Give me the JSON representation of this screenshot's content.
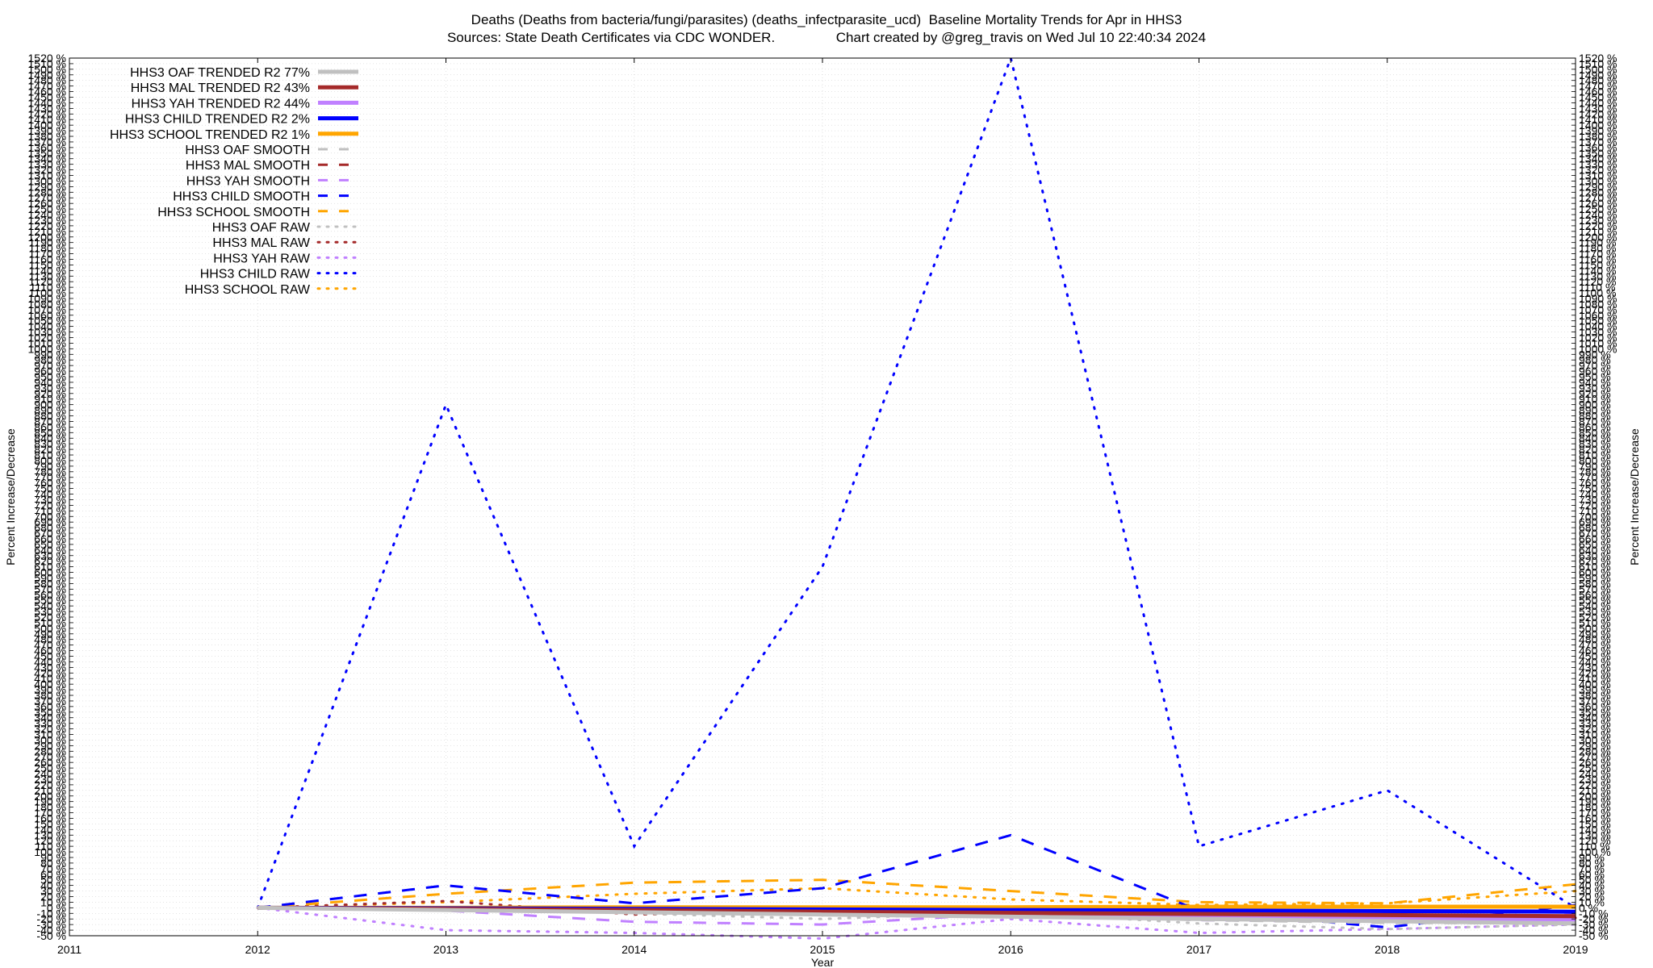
{
  "title_line1": "Deaths (Deaths from bacteria/fungi/parasites) (deaths_infectparasite_ucd)  Baseline Mortality Trends for Apr in HHS3",
  "title_line2": "Sources: State Death Certificates via CDC WONDER.                Chart created by @greg_travis on Wed Jul 10 22:40:34 2024",
  "chart_data": {
    "type": "line",
    "title": "Deaths (Deaths from bacteria/fungi/parasites) (deaths_infectparasite_ucd)  Baseline Mortality Trends for Apr in HHS3",
    "subtitle": "Sources: State Death Certificates via CDC WONDER.                Chart created by @greg_travis on Wed Jul 10 22:40:34 2024",
    "xlabel": "Year",
    "ylabel": "Percent Increase/Decrease",
    "y2label": "Percent Increase/Decrease",
    "xlim": [
      2011,
      2019
    ],
    "ylim": [
      -50,
      1520
    ],
    "x_ticks": [
      2011,
      2012,
      2013,
      2014,
      2015,
      2016,
      2017,
      2018,
      2019
    ],
    "y_tick_step": 10,
    "y_tick_suffix": " %",
    "grid": true,
    "legend_position": "top-left",
    "x": [
      2012,
      2013,
      2014,
      2015,
      2016,
      2017,
      2018,
      2019
    ],
    "series": [
      {
        "name": "HHS3 OAF TRENDED R2  77%",
        "style": "solid-thick",
        "color": "#c0c0c0",
        "values": [
          0,
          -4,
          -8,
          -12,
          -16,
          -20,
          -24,
          -28
        ]
      },
      {
        "name": "HHS3 MAL TRENDED R2  43%",
        "style": "solid-thick",
        "color": "#a52a2a",
        "values": [
          0,
          -2,
          -4,
          -7,
          -9,
          -11,
          -13,
          -15
        ]
      },
      {
        "name": "HHS3 YAH TRENDED R2  44%",
        "style": "solid-thick",
        "color": "#c080ff",
        "values": [
          0,
          -3,
          -6,
          -9,
          -12,
          -15,
          -18,
          -21
        ]
      },
      {
        "name": "HHS3 CHILD TRENDED R2   2%",
        "style": "solid-thick",
        "color": "#0000ff",
        "values": [
          0,
          -1,
          -2,
          -3,
          -4,
          -5,
          -6,
          -7
        ]
      },
      {
        "name": "HHS3 SCHOOL TRENDED R2   1%",
        "style": "solid-thick",
        "color": "#ffa500",
        "values": [
          0,
          0,
          1,
          1,
          1,
          2,
          2,
          2
        ]
      },
      {
        "name": "HHS3 OAF SMOOTH",
        "style": "dashed",
        "color": "#c0c0c0",
        "values": [
          0,
          -3,
          -7,
          -12,
          -15,
          -22,
          -27,
          -28
        ]
      },
      {
        "name": "HHS3 MAL SMOOTH",
        "style": "dashed",
        "color": "#a52a2a",
        "values": [
          0,
          -2,
          -5,
          -5,
          -5,
          -8,
          -12,
          -16
        ]
      },
      {
        "name": "HHS3 YAH SMOOTH",
        "style": "dashed",
        "color": "#c080ff",
        "values": [
          0,
          -5,
          -25,
          -30,
          -10,
          -22,
          -26,
          -12
        ]
      },
      {
        "name": "HHS3 CHILD SMOOTH",
        "style": "dashed",
        "color": "#0000ff",
        "values": [
          0,
          40,
          8,
          35,
          130,
          -5,
          -35,
          5
        ]
      },
      {
        "name": "HHS3 SCHOOL SMOOTH",
        "style": "dashed",
        "color": "#ffa500",
        "values": [
          0,
          25,
          45,
          50,
          30,
          10,
          8,
          42
        ]
      },
      {
        "name": "HHS3 OAF RAW",
        "style": "dotted",
        "color": "#c0c0c0",
        "values": [
          0,
          0,
          -10,
          -20,
          -8,
          -28,
          -38,
          -30
        ]
      },
      {
        "name": "HHS3 MAL RAW",
        "style": "dotted",
        "color": "#a52a2a",
        "values": [
          0,
          12,
          -12,
          -8,
          -4,
          -15,
          -25,
          -18
        ]
      },
      {
        "name": "HHS3 YAH RAW",
        "style": "dotted",
        "color": "#c080ff",
        "values": [
          0,
          -40,
          -45,
          -55,
          -20,
          -45,
          -38,
          -30
        ]
      },
      {
        "name": "HHS3 CHILD RAW",
        "style": "dotted",
        "color": "#0000ff",
        "values": [
          0,
          900,
          110,
          610,
          1520,
          110,
          210,
          0
        ]
      },
      {
        "name": "HHS3 SCHOOL RAW",
        "style": "dotted",
        "color": "#ffa500",
        "values": [
          0,
          10,
          25,
          35,
          15,
          5,
          8,
          30
        ]
      }
    ]
  }
}
